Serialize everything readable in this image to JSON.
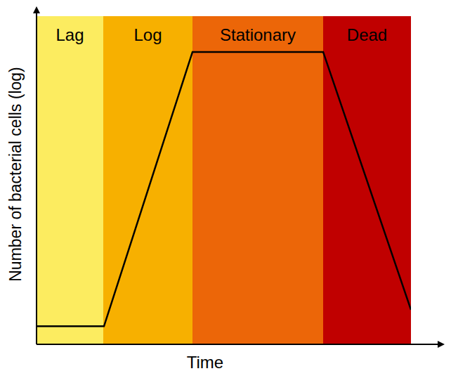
{
  "chart_data": {
    "type": "line",
    "x_label": "Time",
    "y_label": "Number of bacterial cells (log)",
    "x": [
      0,
      9.6,
      22.2,
      40.8,
      53.3
    ],
    "values": [
      3.5,
      3.5,
      650000000,
      650000000,
      11
    ],
    "color": "#000000",
    "xlim": [
      0,
      53.3
    ],
    "ylim": [
      1,
      7800000000
    ],
    "log": "y",
    "grid": false,
    "tick_labels": false,
    "phases": [
      {
        "label": "Lag",
        "start": 0,
        "end": 9.5,
        "color": "#fcec60"
      },
      {
        "label": "Log",
        "start": 9.5,
        "end": 22.2,
        "color": "#f7b000"
      },
      {
        "label": "Stationary",
        "start": 22.2,
        "end": 40.8,
        "color": "#ec6608"
      },
      {
        "label": "Dead",
        "start": 40.8,
        "end": 53.3,
        "color": "#c00000"
      }
    ]
  }
}
